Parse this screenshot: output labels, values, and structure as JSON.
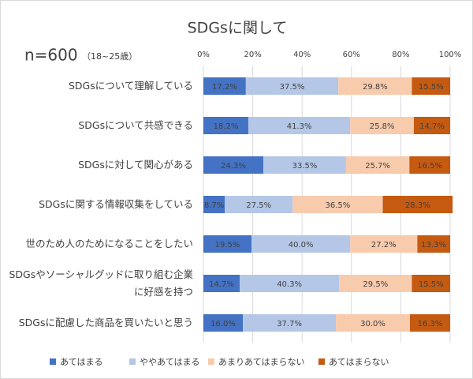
{
  "chart_data": {
    "type": "stacked-bar-horizontal",
    "title": "SDGsに関して",
    "sample_size": "n=600",
    "sample_note": "（18~25歳）",
    "categories": [
      "SDGsについて理解している",
      "SDGsについて共感できる",
      "SDGsに対して関心がある",
      "SDGsに関する情報収集をしている",
      "世のため人のためになることをしたい",
      "SDGsやソーシャルグッドに取り組む企業に好感を持つ",
      "SDGsに配慮した商品を買いたいと思う"
    ],
    "series": [
      {
        "name": "あてはまる",
        "color": "#4472c4",
        "values": [
          17.2,
          18.2,
          24.3,
          8.7,
          19.5,
          14.7,
          16.0
        ],
        "value_labels": [
          "17.2%",
          "18.2%",
          "24.3%",
          "8.7%",
          "19.5%",
          "14.7%",
          "16.0%"
        ]
      },
      {
        "name": "ややあてはまる",
        "color": "#b4c7e7",
        "values": [
          37.5,
          41.3,
          33.5,
          27.5,
          40.0,
          40.3,
          37.7
        ],
        "value_labels": [
          "37.5%",
          "41.3%",
          "33.5%",
          "27.5%",
          "40.0%",
          "40.3%",
          "37.7%"
        ]
      },
      {
        "name": "あまりあてはまらない",
        "color": "#f8cbad",
        "values": [
          29.8,
          25.8,
          25.7,
          36.5,
          27.2,
          29.5,
          30.0
        ],
        "value_labels": [
          "29.8%",
          "25.8%",
          "25.7%",
          "36.5%",
          "27.2%",
          "29.5%",
          "30.0%"
        ]
      },
      {
        "name": "あてはまらない",
        "color": "#c55a11",
        "values": [
          15.5,
          14.7,
          16.5,
          28.3,
          13.3,
          15.5,
          16.3
        ],
        "value_labels": [
          "15.5%",
          "14.7%",
          "16.5%",
          "28.3%",
          "13.3%",
          "15.5%",
          "16.3%"
        ]
      }
    ],
    "xlim": [
      0,
      100
    ],
    "xticks": [
      {
        "value": 0,
        "label": "0%"
      },
      {
        "value": 20,
        "label": "20%"
      },
      {
        "value": 40,
        "label": "40%"
      },
      {
        "value": 60,
        "label": "60%"
      },
      {
        "value": 80,
        "label": "80%"
      },
      {
        "value": 100,
        "label": "100%"
      }
    ],
    "grid": true,
    "legend": "bottom"
  }
}
